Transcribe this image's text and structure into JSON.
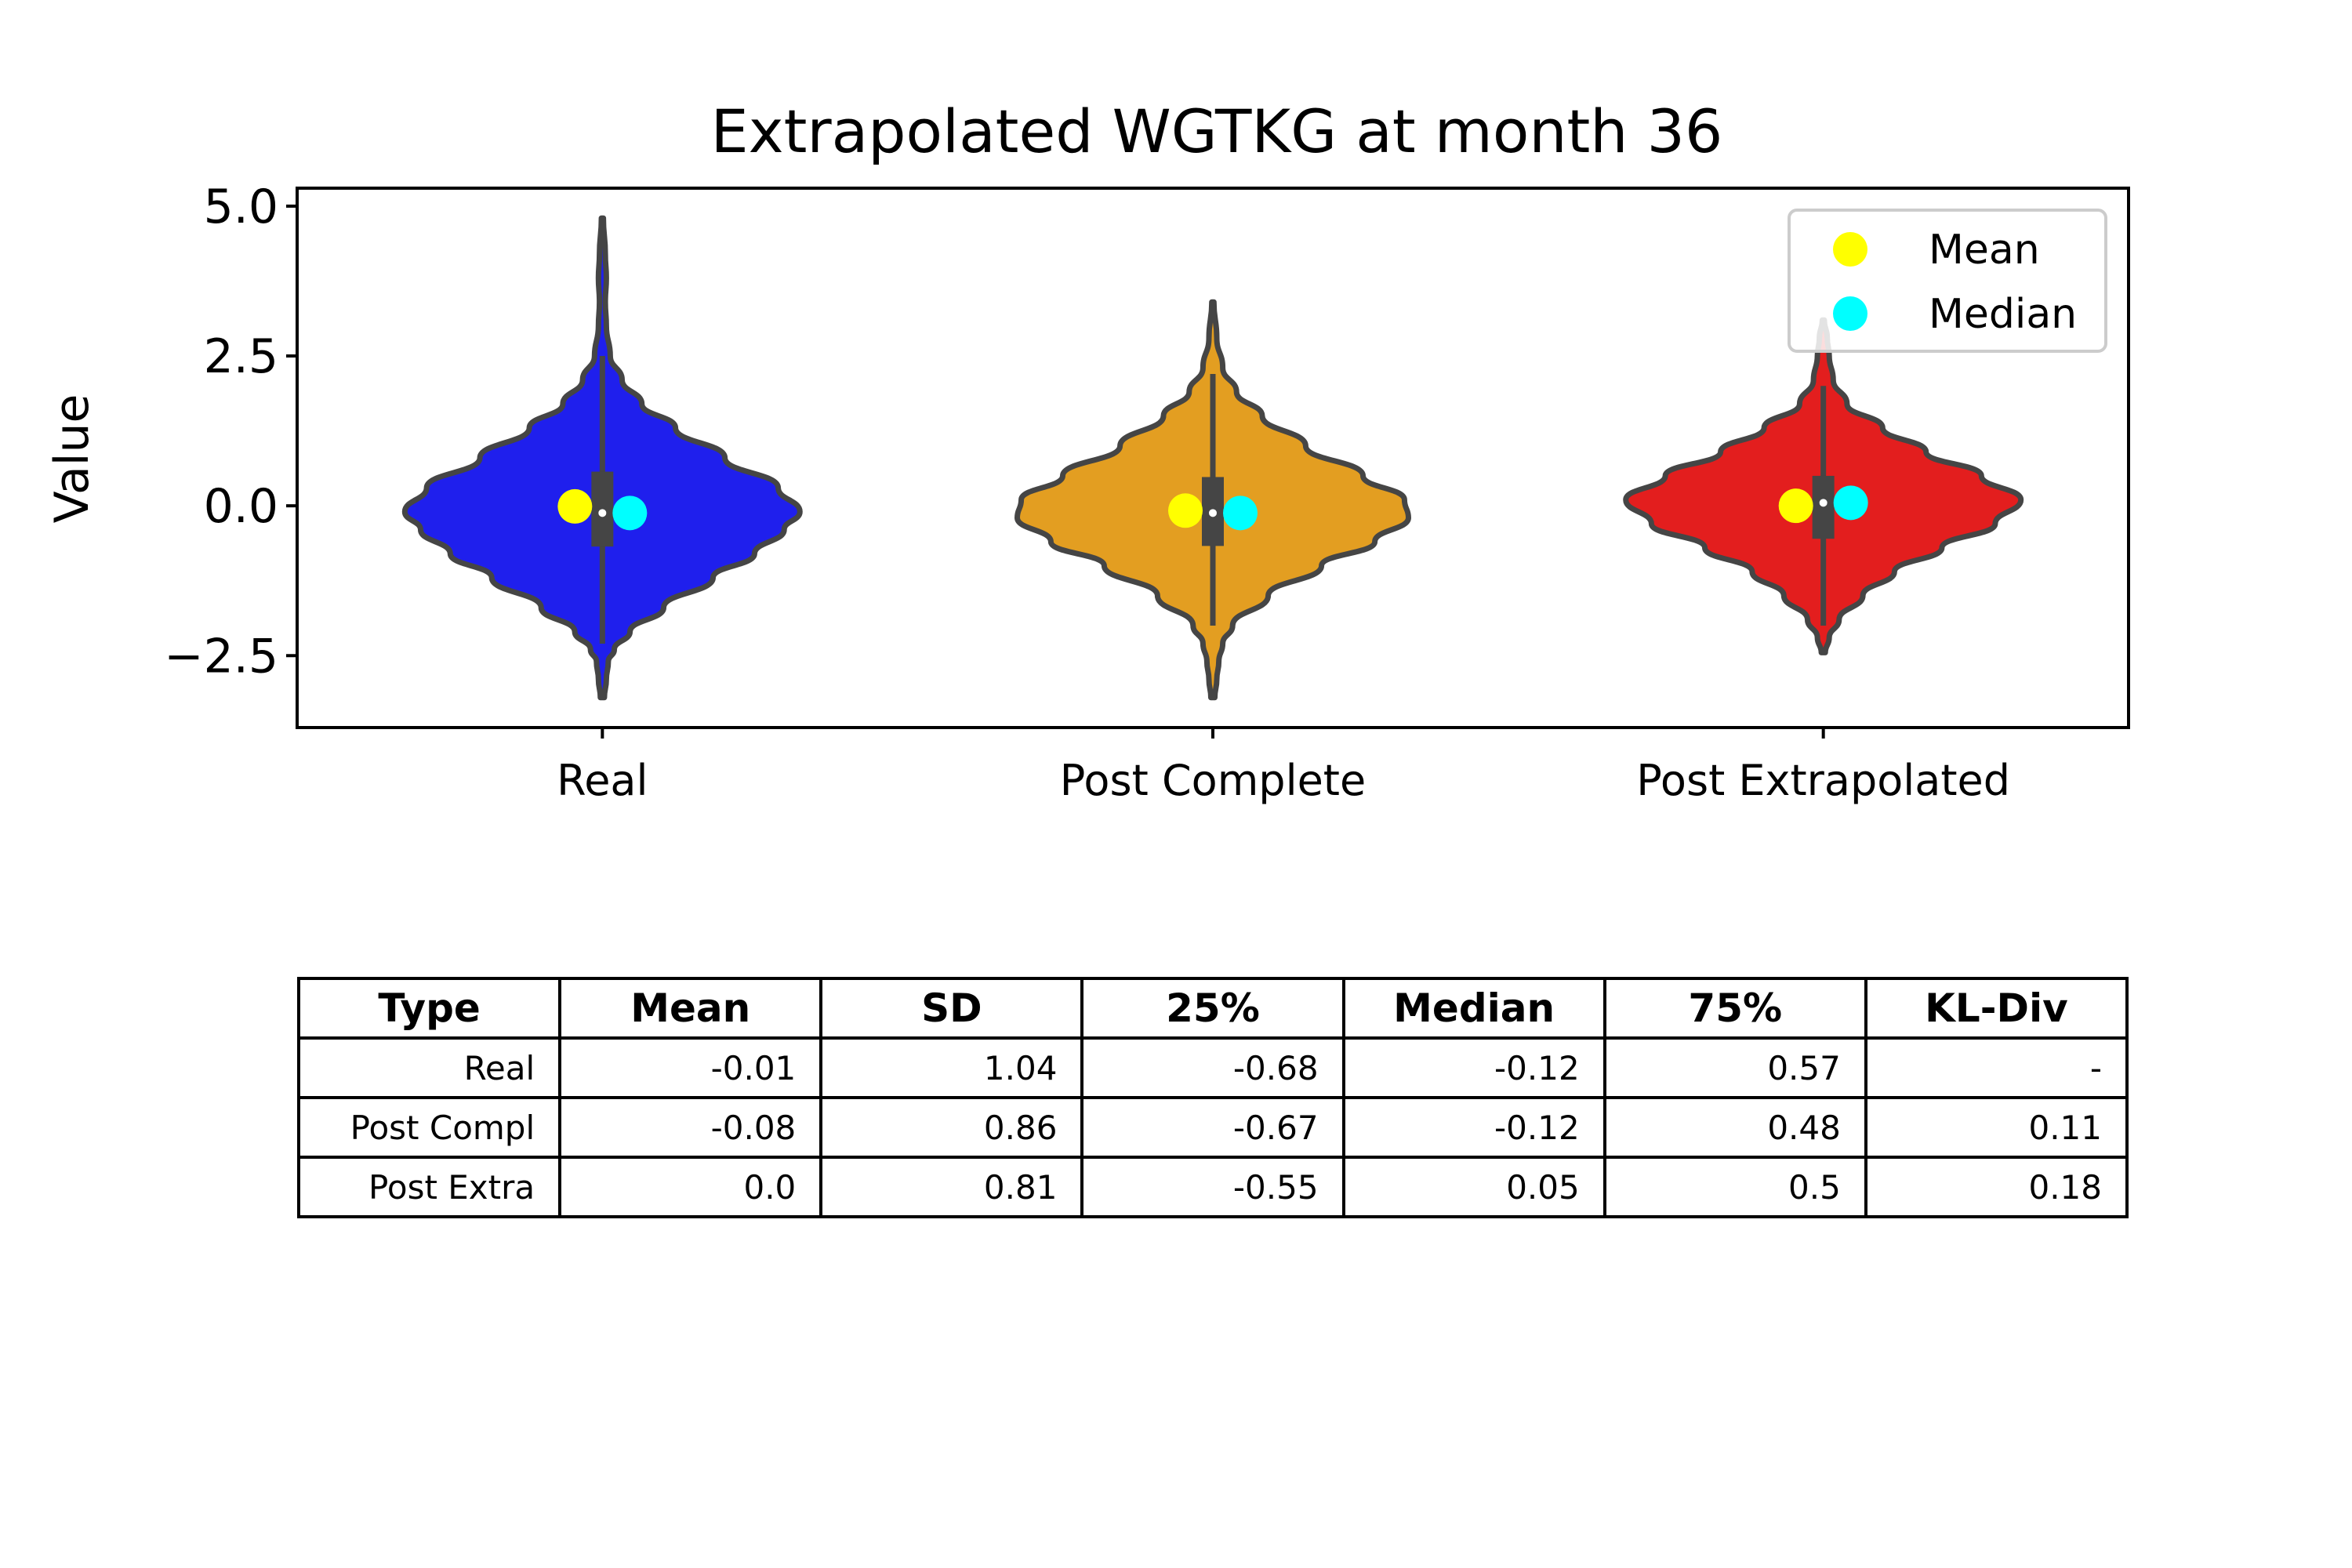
{
  "chart_data": {
    "type": "violin",
    "title": "Extrapolated WGTKG at month 36",
    "xlabel": "",
    "ylabel": "Value",
    "ylim": [
      -3.7,
      5.3
    ],
    "yticks": [
      5.0,
      2.5,
      0.0,
      -2.5
    ],
    "ytick_labels": [
      "5.0",
      "2.5",
      "0.0",
      "−2.5"
    ],
    "grid": false,
    "legend_position": "top-right",
    "legend": [
      {
        "label": "Mean",
        "color": "#ffff00"
      },
      {
        "label": "Median",
        "color": "#00ffff"
      }
    ],
    "categories": [
      "Real",
      "Post Complete",
      "Post Extrapolated"
    ],
    "series": [
      {
        "color": "#1f1fed",
        "mean": -0.01,
        "median": -0.12,
        "q1": -0.68,
        "q3": 0.57,
        "whisker_low": -2.3,
        "whisker_high": 2.5,
        "profile": [
          [
            -3.2,
            0.01
          ],
          [
            -2.9,
            0.02
          ],
          [
            -2.6,
            0.03
          ],
          [
            -2.4,
            0.06
          ],
          [
            -2.1,
            0.14
          ],
          [
            -1.7,
            0.31
          ],
          [
            -1.2,
            0.56
          ],
          [
            -0.8,
            0.77
          ],
          [
            -0.4,
            0.92
          ],
          [
            -0.1,
            1.0
          ],
          [
            0.3,
            0.89
          ],
          [
            0.8,
            0.62
          ],
          [
            1.3,
            0.37
          ],
          [
            1.7,
            0.2
          ],
          [
            2.1,
            0.1
          ],
          [
            2.5,
            0.04
          ],
          [
            3.0,
            0.02
          ],
          [
            3.4,
            0.015
          ],
          [
            3.8,
            0.02
          ],
          [
            4.2,
            0.015
          ],
          [
            4.8,
            0.005
          ]
        ]
      },
      {
        "color": "#e39e21",
        "mean": -0.08,
        "median": -0.12,
        "q1": -0.67,
        "q3": 0.48,
        "whisker_low": -2.0,
        "whisker_high": 2.2,
        "profile": [
          [
            -3.2,
            0.01
          ],
          [
            -2.9,
            0.02
          ],
          [
            -2.6,
            0.03
          ],
          [
            -2.3,
            0.05
          ],
          [
            -2.0,
            0.1
          ],
          [
            -1.5,
            0.28
          ],
          [
            -1.0,
            0.55
          ],
          [
            -0.6,
            0.82
          ],
          [
            -0.2,
            0.99
          ],
          [
            0.1,
            0.97
          ],
          [
            0.5,
            0.76
          ],
          [
            1.0,
            0.47
          ],
          [
            1.5,
            0.25
          ],
          [
            1.9,
            0.12
          ],
          [
            2.3,
            0.05
          ],
          [
            2.8,
            0.02
          ],
          [
            3.4,
            0.005
          ]
        ]
      },
      {
        "color": "#e31e1e",
        "mean": 0.0,
        "median": 0.05,
        "q1": -0.55,
        "q3": 0.5,
        "whisker_low": -2.0,
        "whisker_high": 2.0,
        "profile": [
          [
            -2.45,
            0.01
          ],
          [
            -2.2,
            0.03
          ],
          [
            -1.9,
            0.08
          ],
          [
            -1.5,
            0.2
          ],
          [
            -1.1,
            0.36
          ],
          [
            -0.7,
            0.6
          ],
          [
            -0.3,
            0.87
          ],
          [
            0.1,
            1.0
          ],
          [
            0.5,
            0.8
          ],
          [
            0.9,
            0.52
          ],
          [
            1.3,
            0.3
          ],
          [
            1.7,
            0.12
          ],
          [
            2.1,
            0.05
          ],
          [
            2.5,
            0.03
          ],
          [
            2.8,
            0.02
          ],
          [
            3.1,
            0.005
          ]
        ]
      }
    ]
  },
  "table": {
    "headers": [
      "Type",
      "Mean",
      "SD",
      "25%",
      "Median",
      "75%",
      "KL-Div"
    ],
    "rows": [
      [
        "Real",
        "-0.01",
        "1.04",
        "-0.68",
        "-0.12",
        "0.57",
        "-"
      ],
      [
        "Post Compl",
        "-0.08",
        "0.86",
        "-0.67",
        "-0.12",
        "0.48",
        "0.11"
      ],
      [
        "Post Extra",
        "0.0",
        "0.81",
        "-0.55",
        "0.05",
        "0.5",
        "0.18"
      ]
    ]
  }
}
